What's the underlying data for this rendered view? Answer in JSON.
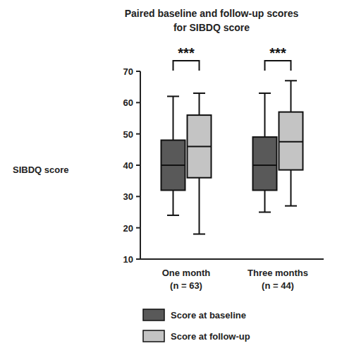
{
  "chart_data": {
    "type": "box",
    "title": "Paired baseline and follow-up scores",
    "subtitle": "for SIBDQ score",
    "y_label": "SIBDQ score",
    "categories": [
      "One month (n = 63)",
      "Three months (n = 44)"
    ],
    "series": [
      {
        "name": "Score at baseline",
        "color": "#595959",
        "min": [
          24,
          25
        ],
        "q1": [
          32,
          32
        ],
        "median": [
          40,
          40
        ],
        "q3": [
          48,
          49
        ],
        "max": [
          62,
          63
        ]
      },
      {
        "name": "Score at follow-up",
        "color": "#c4c4c4",
        "min": [
          18,
          27
        ],
        "q1": [
          36,
          38.5
        ],
        "median": [
          46,
          47.5
        ],
        "q3": [
          56,
          57
        ],
        "max": [
          63,
          67
        ]
      }
    ],
    "annotations": [
      {
        "text": "***",
        "category": 0
      },
      {
        "text": "***",
        "category": 1
      }
    ],
    "ylim": [
      10,
      70
    ],
    "yticks": [
      10,
      20,
      30,
      40,
      50,
      60,
      70
    ],
    "legend": "bottom",
    "grid": false
  }
}
